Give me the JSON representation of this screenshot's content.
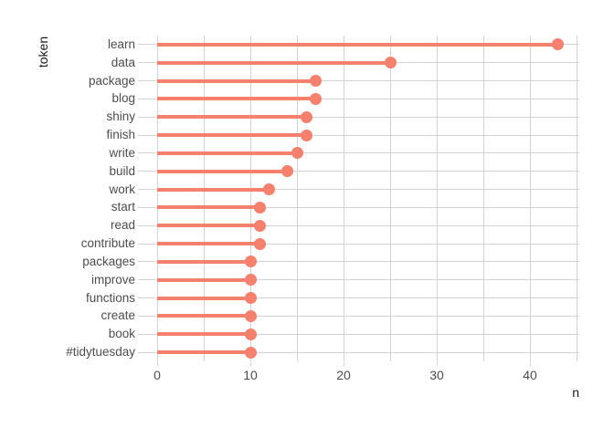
{
  "figure": {
    "background": "#ffffff",
    "accent_color": "#f5806d",
    "grid_color": "#d3d3d3",
    "tick_label_color": "#4d4d4d",
    "axis_title_color": "#1a1a1a"
  },
  "chart_data": {
    "type": "bar",
    "variant": "lollipop",
    "orientation": "horizontal",
    "title": "",
    "xlabel": "n",
    "ylabel": "token",
    "categories": [
      "learn",
      "data",
      "package",
      "blog",
      "shiny",
      "finish",
      "write",
      "build",
      "work",
      "start",
      "read",
      "contribute",
      "packages",
      "improve",
      "functions",
      "create",
      "book",
      "#tidytuesday"
    ],
    "values": [
      43,
      25,
      17,
      17,
      16,
      16,
      15,
      14,
      12,
      11,
      11,
      11,
      10,
      10,
      10,
      10,
      10,
      10
    ],
    "x_ticks": [
      0,
      10,
      20,
      30,
      40
    ],
    "xlim": [
      0,
      45
    ],
    "grid": "on",
    "grid_step": 5,
    "legend": "none",
    "point_color": "#f5806d",
    "stem_color": "#f5806d"
  }
}
